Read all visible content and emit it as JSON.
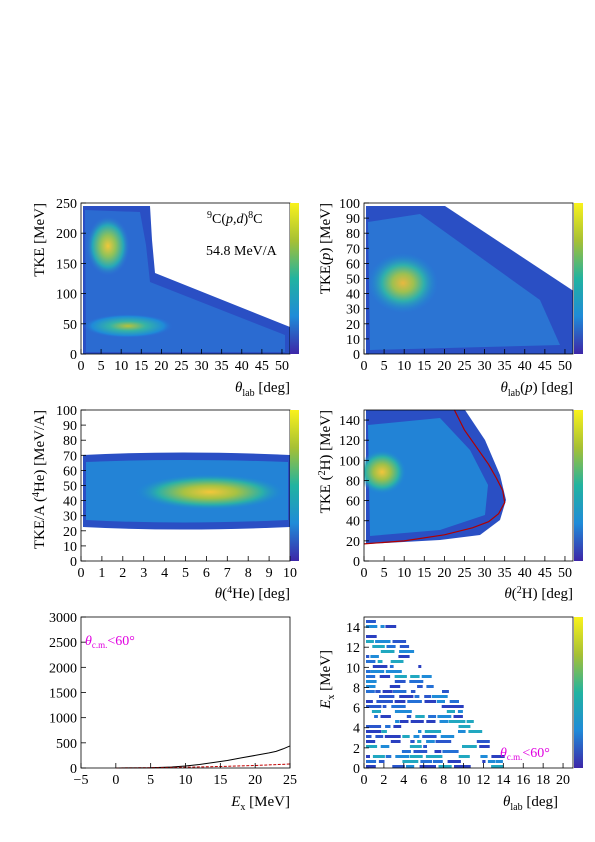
{
  "charts": [
    {
      "type": "heatmap",
      "xlabel": "θ_lab [deg]",
      "ylabel": "TKE [MeV]",
      "xlim": [
        0,
        52
      ],
      "ylim": [
        0,
        250
      ],
      "xticks": [
        0,
        5,
        10,
        15,
        20,
        25,
        30,
        35,
        40,
        45,
        50
      ],
      "yticks": [
        0,
        50,
        100,
        150,
        200,
        250
      ],
      "annotations": [
        "⁹C(p,d)⁸C",
        "54.8 MeV/A"
      ],
      "colorbar": true
    },
    {
      "type": "heatmap",
      "xlabel": "θ_lab(p) [deg]",
      "ylabel": "TKE(p) [MeV]",
      "xlim": [
        0,
        52
      ],
      "ylim": [
        0,
        100
      ],
      "xticks": [
        0,
        5,
        10,
        15,
        20,
        25,
        30,
        35,
        40,
        45,
        50
      ],
      "yticks": [
        0,
        10,
        20,
        30,
        40,
        50,
        60,
        70,
        80,
        90,
        100
      ],
      "colorbar": true
    },
    {
      "type": "heatmap",
      "xlabel": "θ(⁴He) [deg]",
      "ylabel": "TKE/A (⁴He) [MeV/A]",
      "xlim": [
        0,
        10
      ],
      "ylim": [
        0,
        100
      ],
      "xticks": [
        0,
        1,
        2,
        3,
        4,
        5,
        6,
        7,
        8,
        9,
        10
      ],
      "yticks": [
        0,
        10,
        20,
        30,
        40,
        50,
        60,
        70,
        80,
        90,
        100
      ],
      "colorbar": true
    },
    {
      "type": "heatmap",
      "xlabel": "θ(²H) [deg]",
      "ylabel": "TKE (²H) [MeV]",
      "xlim": [
        0,
        52
      ],
      "ylim": [
        0,
        150
      ],
      "xticks": [
        0,
        5,
        10,
        15,
        20,
        25,
        30,
        35,
        40,
        45,
        50
      ],
      "yticks": [
        0,
        20,
        40,
        60,
        80,
        100,
        120,
        140
      ],
      "kinematic_curve": [
        [
          0,
          17
        ],
        [
          10,
          20
        ],
        [
          20,
          26
        ],
        [
          27,
          33
        ],
        [
          31,
          39
        ],
        [
          33.5,
          47
        ],
        [
          35,
          58
        ],
        [
          34.5,
          70
        ],
        [
          33,
          82
        ],
        [
          31,
          96
        ],
        [
          28,
          113
        ],
        [
          25,
          130
        ],
        [
          22.5,
          150
        ]
      ],
      "colorbar": true
    },
    {
      "type": "line",
      "xlabel": "E_x [MeV]",
      "ylabel": "",
      "xlim": [
        -5,
        25
      ],
      "ylim": [
        0,
        3000
      ],
      "xticks": [
        -5,
        0,
        5,
        10,
        15,
        20,
        25
      ],
      "yticks": [
        0,
        500,
        1000,
        1500,
        2000,
        2500,
        3000
      ],
      "annotation": "θ_c.m.<60°",
      "series": [
        {
          "color": "#000000",
          "x": [
            0,
            5,
            8,
            10,
            12,
            14,
            16,
            18,
            20,
            22,
            23,
            24,
            25
          ],
          "y": [
            0,
            5,
            20,
            40,
            70,
            110,
            150,
            200,
            250,
            300,
            330,
            380,
            440
          ]
        },
        {
          "color": "#c00000",
          "x": [
            0,
            5,
            10,
            15,
            20,
            25
          ],
          "y": [
            0,
            5,
            15,
            30,
            50,
            80
          ]
        }
      ]
    },
    {
      "type": "heatmap",
      "xlabel": "θ_lab [deg]",
      "ylabel": "E_x [MeV]",
      "xlim": [
        0,
        21
      ],
      "ylim": [
        0,
        15
      ],
      "xticks": [
        0,
        2,
        4,
        6,
        8,
        10,
        12,
        14,
        16,
        18,
        20
      ],
      "yticks": [
        0,
        2,
        4,
        6,
        8,
        10,
        12,
        14
      ],
      "annotation": "θ_c.m.<60°",
      "colorbar": true
    }
  ],
  "tick_labels": {
    "p1x": [
      "0",
      "5",
      "10",
      "15",
      "20",
      "25",
      "30",
      "35",
      "40",
      "45",
      "50"
    ],
    "p1y": [
      "0",
      "50",
      "100",
      "150",
      "200",
      "250"
    ],
    "p2x": [
      "0",
      "5",
      "10",
      "15",
      "20",
      "25",
      "30",
      "35",
      "40",
      "45",
      "50"
    ],
    "p2y": [
      "0",
      "10",
      "20",
      "30",
      "40",
      "50",
      "60",
      "70",
      "80",
      "90",
      "100"
    ],
    "p3x": [
      "0",
      "1",
      "2",
      "3",
      "4",
      "5",
      "6",
      "7",
      "8",
      "9",
      "10"
    ],
    "p3y": [
      "0",
      "10",
      "20",
      "30",
      "40",
      "50",
      "60",
      "70",
      "80",
      "90",
      "100"
    ],
    "p4x": [
      "0",
      "5",
      "10",
      "15",
      "20",
      "25",
      "30",
      "35",
      "40",
      "45",
      "50"
    ],
    "p4y": [
      "0",
      "20",
      "40",
      "60",
      "80",
      "100",
      "120",
      "140"
    ],
    "p5x": [
      "−5",
      "0",
      "5",
      "10",
      "15",
      "20",
      "25"
    ],
    "p5y": [
      "0",
      "500",
      "1000",
      "1500",
      "2000",
      "2500",
      "3000"
    ],
    "p6x": [
      "0",
      "2",
      "4",
      "6",
      "8",
      "10",
      "12",
      "14",
      "16",
      "18",
      "20"
    ],
    "p6y": [
      "0",
      "2",
      "4",
      "6",
      "8",
      "10",
      "12",
      "14"
    ]
  }
}
